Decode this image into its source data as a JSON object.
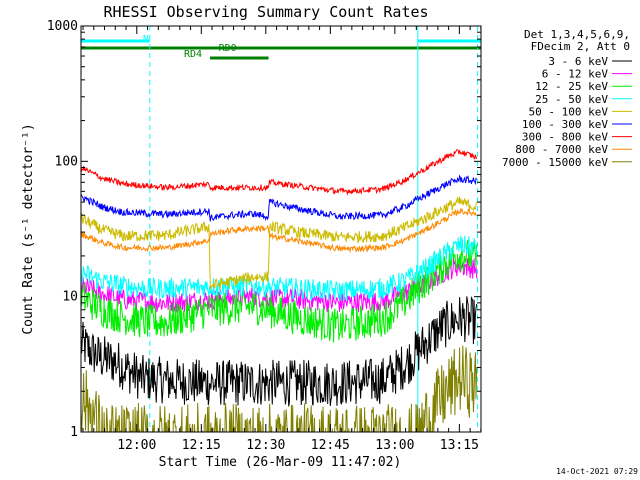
{
  "chart_data": {
    "type": "line",
    "title": "RHESSI Observing Summary Count Rates",
    "xlabel": "Start Time (26-Mar-09 11:47:02)",
    "ylabel": "Count Rate (s⁻¹ detector⁻¹)",
    "yscale": "log",
    "ylim": [
      1,
      1000
    ],
    "xlim_minutes_after_start": [
      0,
      93
    ],
    "x_ticks": [
      {
        "label": "12:00",
        "minute": 12.97
      },
      {
        "label": "12:15",
        "minute": 27.97
      },
      {
        "label": "12:30",
        "minute": 42.97
      },
      {
        "label": "12:45",
        "minute": 57.97
      },
      {
        "label": "13:00",
        "minute": 72.97
      },
      {
        "label": "13:15",
        "minute": 87.97
      }
    ],
    "y_ticks": [
      {
        "label": "1",
        "value": 1
      },
      {
        "label": "10",
        "value": 10
      },
      {
        "label": "100",
        "value": 100
      },
      {
        "label": "1000",
        "value": 1000
      }
    ],
    "legend": {
      "placement": "right",
      "header": [
        "Det 1,3,4,5,6,9,",
        "FDecim 2, Att 0"
      ]
    },
    "series": [
      {
        "name": "3 - 6 keV",
        "color": "#000000",
        "noise": 0.4,
        "x": [
          0,
          4,
          8,
          10,
          14,
          20,
          30,
          40,
          50,
          60,
          70,
          74,
          76,
          80,
          84,
          88,
          92
        ],
        "y": [
          4.5,
          3.6,
          3.3,
          3.0,
          2.5,
          2.4,
          2.3,
          2.3,
          2.3,
          2.3,
          2.4,
          2.9,
          3.3,
          4.5,
          6.0,
          7.0,
          6.5
        ]
      },
      {
        "name": "6 - 12 keV",
        "color": "#ff00ff",
        "noise": 0.18,
        "x": [
          0,
          5,
          10,
          20,
          30,
          40,
          50,
          60,
          70,
          75,
          80,
          85,
          88,
          92
        ],
        "y": [
          12,
          10.5,
          9.5,
          9.0,
          9.5,
          10,
          9.6,
          9.0,
          9.2,
          10.5,
          12.5,
          15.5,
          17,
          16
        ]
      },
      {
        "name": "12 - 25 keV",
        "color": "#00ee00",
        "noise": 0.3,
        "x": [
          0,
          5,
          10,
          15,
          20,
          30,
          40,
          50,
          60,
          70,
          75,
          80,
          85,
          88,
          92
        ],
        "y": [
          10,
          8.0,
          7.0,
          6.5,
          6.5,
          8.0,
          8.5,
          7.0,
          6.0,
          6.8,
          9.0,
          13,
          18,
          21,
          19
        ]
      },
      {
        "name": "25 - 50 keV",
        "color": "#00ffff",
        "noise": 0.18,
        "x": [
          0,
          5,
          10,
          15,
          20,
          30,
          40,
          50,
          60,
          70,
          75,
          80,
          85,
          88,
          92
        ],
        "y": [
          15,
          13,
          12,
          11.5,
          11.5,
          11.8,
          12,
          11.5,
          11,
          11.5,
          13,
          16,
          21,
          24,
          23
        ]
      },
      {
        "name": "50 - 100 keV",
        "color": "#ccbb00",
        "noise": 0.1,
        "x": [
          0,
          5,
          10,
          20,
          29.8,
          30,
          35,
          40,
          43.6,
          43.8,
          50,
          60,
          70,
          75,
          80,
          85,
          88,
          92
        ],
        "y": [
          38,
          31,
          28,
          28.5,
          33,
          12,
          13,
          14,
          14,
          33,
          30,
          27.5,
          28,
          32,
          38,
          46,
          50,
          46
        ]
      },
      {
        "name": "100 - 300 keV",
        "color": "#0000ff",
        "noise": 0.06,
        "x": [
          0,
          5,
          10,
          20,
          29.8,
          30,
          35,
          40,
          43.6,
          43.8,
          50,
          60,
          70,
          75,
          80,
          85,
          88,
          92
        ],
        "y": [
          55,
          46,
          42,
          40.5,
          43,
          38,
          40,
          41,
          39,
          50,
          45,
          39,
          40,
          46,
          56,
          68,
          74,
          71
        ]
      },
      {
        "name": "300 - 800 keV",
        "color": "#ff0000",
        "noise": 0.05,
        "x": [
          0,
          5,
          10,
          20,
          29.8,
          30,
          43.6,
          43.8,
          50,
          60,
          70,
          75,
          80,
          85,
          88,
          92
        ],
        "y": [
          90,
          75,
          68,
          64,
          68,
          64,
          64,
          70,
          66,
          60,
          62,
          72,
          88,
          108,
          118,
          107
        ]
      },
      {
        "name": "800 - 7000 keV",
        "color": "#ff8800",
        "noise": 0.05,
        "x": [
          0,
          5,
          10,
          20,
          29.8,
          30,
          35,
          40,
          43.6,
          43.8,
          50,
          60,
          70,
          75,
          80,
          85,
          88,
          92
        ],
        "y": [
          29,
          25,
          23,
          23,
          26,
          29,
          31,
          32,
          32,
          28,
          26,
          22.5,
          23,
          26,
          31,
          38,
          43,
          41
        ]
      },
      {
        "name": "7000 - 15000 keV",
        "color": "#808000",
        "noise": 0.6,
        "x": [
          0,
          2,
          4,
          6,
          78,
          80,
          84,
          88,
          92
        ],
        "y": [
          1.8,
          1.5,
          1.1,
          0.9,
          0.9,
          1.2,
          1.8,
          2.5,
          2.2
        ]
      }
    ],
    "annotations": [
      {
        "label": "N",
        "color": "#00ffff",
        "row": 1,
        "x_start": 0,
        "x_end": 16
      },
      {
        "label": "",
        "color": "#00ffff",
        "row": 1,
        "x_start": 78.3,
        "x_end": 93
      },
      {
        "label": "RD0",
        "color": "#008000",
        "row": 2,
        "x_start": 0,
        "x_end": 93
      },
      {
        "label": "RD4",
        "color": "#008000",
        "row": 3,
        "x_start": 30,
        "x_end": 43.6
      }
    ],
    "vertical_markers": [
      {
        "color": "#00ffff",
        "style": "dashed",
        "x": 16
      },
      {
        "color": "#00ffff",
        "style": "solid",
        "x": 78.3
      },
      {
        "color": "#00ffff",
        "style": "dashed",
        "x": 92.2
      }
    ]
  },
  "footer": {
    "timestamp": "14-Oct-2021 07:29"
  }
}
